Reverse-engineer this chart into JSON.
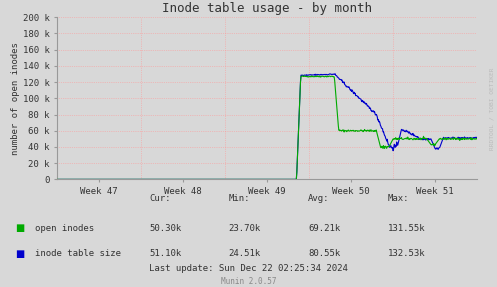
{
  "title": "Inode table usage - by month",
  "ylabel": "number of open inodes",
  "xlabel_ticks": [
    "Week 47",
    "Week 48",
    "Week 49",
    "Week 50",
    "Week 51"
  ],
  "ylim": [
    0,
    200000
  ],
  "yticks": [
    0,
    20000,
    40000,
    60000,
    80000,
    100000,
    120000,
    140000,
    160000,
    180000,
    200000
  ],
  "ytick_labels": [
    "0",
    "20 k",
    "40 k",
    "60 k",
    "80 k",
    "100 k",
    "120 k",
    "140 k",
    "160 k",
    "180 k",
    "200 k"
  ],
  "bg_color": "#d8d8d8",
  "plot_bg_color": "#d8d8d8",
  "grid_color": "#ff9999",
  "line_color_green": "#00aa00",
  "line_color_blue": "#0000cc",
  "legend_green": "open inodes",
  "legend_blue": "inode table size",
  "footer_last_update": "Last update: Sun Dec 22 02:25:34 2024",
  "footer_munin": "Munin 2.0.57",
  "watermark": "RRDTOOL / TOBI OETIKER",
  "cur_green": "50.30k",
  "min_green": "23.70k",
  "avg_green": "69.21k",
  "max_green": "131.55k",
  "cur_blue": "51.10k",
  "min_blue": "24.51k",
  "avg_blue": "80.55k",
  "max_blue": "132.53k"
}
